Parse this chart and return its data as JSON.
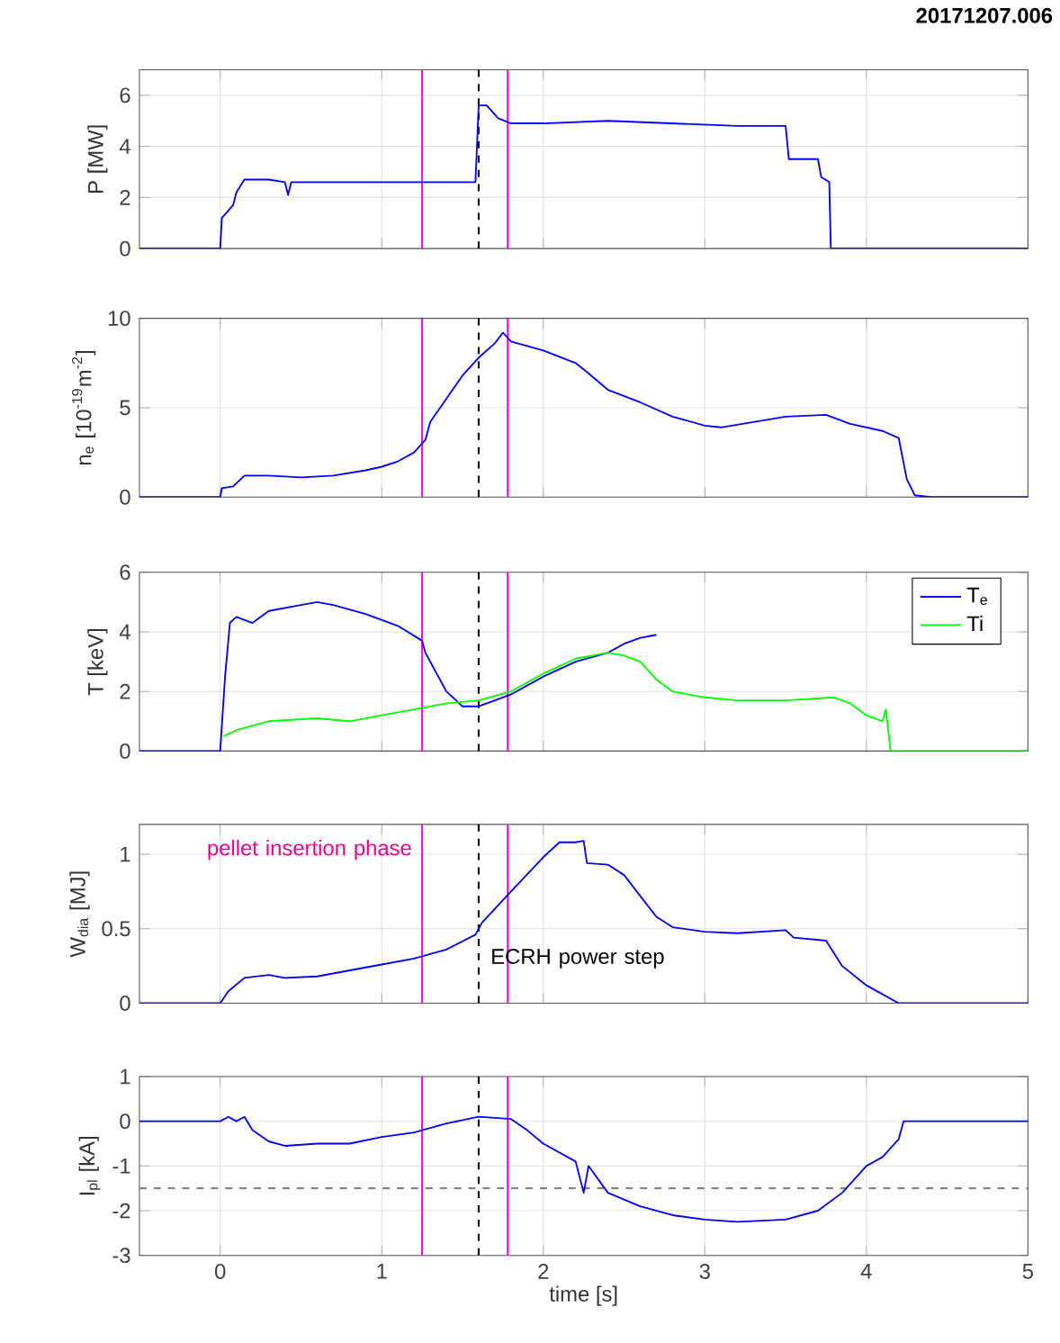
{
  "chart_data": [
    {
      "type": "line",
      "title": "20171207.006",
      "ylabel": "P [MW]",
      "xlim": [
        -0.5,
        5
      ],
      "xticks": [
        0,
        1,
        2,
        3,
        4,
        5
      ],
      "ylim": [
        0,
        7
      ],
      "yticks": [
        0,
        2,
        4,
        6
      ],
      "grid": true,
      "tick_labels": "y",
      "series": [
        {
          "color": "#0000ff",
          "x": [
            -0.5,
            0,
            0.01,
            0.08,
            0.1,
            0.15,
            0.3,
            0.4,
            0.42,
            0.44,
            0.6,
            0.8,
            1.0,
            1.2,
            1.4,
            1.58,
            1.6,
            1.65,
            1.72,
            1.8,
            2.0,
            2.4,
            2.8,
            3.2,
            3.5,
            3.52,
            3.7,
            3.72,
            3.77,
            3.78,
            4.0,
            5
          ],
          "values": [
            0,
            0,
            1.2,
            1.7,
            2.2,
            2.7,
            2.7,
            2.6,
            2.1,
            2.6,
            2.6,
            2.6,
            2.6,
            2.6,
            2.6,
            2.6,
            5.6,
            5.6,
            5.1,
            4.9,
            4.9,
            5.0,
            4.9,
            4.8,
            4.8,
            3.5,
            3.5,
            2.8,
            2.6,
            0,
            0,
            0
          ]
        }
      ],
      "ref_lines": [
        {
          "axis": "x",
          "value": 1.25,
          "color": "#ff00ff"
        },
        {
          "axis": "x",
          "value": 1.78,
          "color": "#ff00ff"
        },
        {
          "axis": "x",
          "value": 1.6,
          "color": "#000000",
          "line_style": "dashed"
        }
      ]
    },
    {
      "type": "line",
      "ylabel": "n$_{e}$ [10$^{-19}$m$^{-2}$]",
      "xlim": [
        -0.5,
        5
      ],
      "xticks": [
        0,
        1,
        2,
        3,
        4,
        5
      ],
      "ylim": [
        0,
        10
      ],
      "yticks": [
        0,
        5,
        10
      ],
      "grid": true,
      "tick_labels": "y",
      "series": [
        {
          "color": "#0000ff",
          "x": [
            -0.5,
            0,
            0.01,
            0.08,
            0.15,
            0.3,
            0.5,
            0.7,
            0.9,
            1.0,
            1.1,
            1.2,
            1.23,
            1.27,
            1.3,
            1.4,
            1.5,
            1.6,
            1.7,
            1.75,
            1.8,
            2.0,
            2.2,
            2.27,
            2.4,
            2.6,
            2.8,
            3.0,
            3.1,
            3.3,
            3.5,
            3.75,
            3.9,
            4.1,
            4.2,
            4.25,
            4.3,
            4.4,
            5
          ],
          "values": [
            0,
            0,
            0.5,
            0.6,
            1.2,
            1.2,
            1.1,
            1.2,
            1.5,
            1.7,
            2.0,
            2.5,
            2.8,
            3.2,
            4.2,
            5.5,
            6.8,
            7.8,
            8.6,
            9.2,
            8.7,
            8.2,
            7.5,
            7.0,
            6.0,
            5.3,
            4.5,
            4.0,
            3.9,
            4.2,
            4.5,
            4.6,
            4.1,
            3.7,
            3.3,
            1.0,
            0.1,
            0,
            0
          ]
        }
      ],
      "ref_lines": [
        {
          "axis": "x",
          "value": 1.25,
          "color": "#ff00ff"
        },
        {
          "axis": "x",
          "value": 1.78,
          "color": "#ff00ff"
        },
        {
          "axis": "x",
          "value": 1.6,
          "color": "#000000",
          "line_style": "dashed"
        }
      ]
    },
    {
      "type": "line",
      "ylabel": "T [keV]",
      "xlim": [
        -0.5,
        5
      ],
      "xticks": [
        0,
        1,
        2,
        3,
        4,
        5
      ],
      "ylim": [
        0,
        6
      ],
      "yticks": [
        0,
        2,
        4,
        6
      ],
      "grid": true,
      "tick_labels": "y",
      "legend": "top right",
      "series": [
        {
          "name": "T$_{e}$",
          "color": "#0000ff",
          "x": [
            -0.5,
            0,
            0.03,
            0.06,
            0.1,
            0.2,
            0.3,
            0.5,
            0.6,
            0.7,
            0.9,
            1.1,
            1.25,
            1.27,
            1.32,
            1.4,
            1.5,
            1.6,
            1.7,
            1.8,
            2.0,
            2.2,
            2.4,
            2.5,
            2.6,
            2.7
          ],
          "values": [
            0,
            0,
            2.5,
            4.3,
            4.5,
            4.3,
            4.7,
            4.9,
            5.0,
            4.9,
            4.6,
            4.2,
            3.7,
            3.3,
            2.8,
            2.0,
            1.5,
            1.5,
            1.7,
            1.9,
            2.5,
            3.0,
            3.3,
            3.6,
            3.8,
            3.9
          ]
        },
        {
          "name": "Ti",
          "color": "#00ff00",
          "x": [
            0.02,
            0.1,
            0.3,
            0.6,
            0.8,
            1.0,
            1.2,
            1.4,
            1.6,
            1.8,
            2.0,
            2.2,
            2.4,
            2.5,
            2.6,
            2.7,
            2.8,
            3.0,
            3.2,
            3.5,
            3.8,
            3.9,
            4.0,
            4.1,
            4.12,
            4.15,
            5
          ],
          "values": [
            0.5,
            0.7,
            1.0,
            1.1,
            1.0,
            1.2,
            1.4,
            1.6,
            1.7,
            2.0,
            2.6,
            3.1,
            3.3,
            3.2,
            3.0,
            2.4,
            2.0,
            1.8,
            1.7,
            1.7,
            1.8,
            1.6,
            1.2,
            1.0,
            1.4,
            0,
            0
          ]
        }
      ],
      "ref_lines": [
        {
          "axis": "x",
          "value": 1.25,
          "color": "#ff00ff"
        },
        {
          "axis": "x",
          "value": 1.78,
          "color": "#ff00ff"
        },
        {
          "axis": "x",
          "value": 1.6,
          "color": "#000000",
          "line_style": "dashed"
        }
      ]
    },
    {
      "type": "line",
      "ylabel": "W$_{dia}$ [MJ]",
      "xlim": [
        -0.5,
        5
      ],
      "xticks": [
        0,
        1,
        2,
        3,
        4,
        5
      ],
      "ylim": [
        0,
        1.2
      ],
      "yticks": [
        0,
        0.5,
        1
      ],
      "grid": true,
      "tick_labels": "y",
      "series": [
        {
          "color": "#0000ff",
          "x": [
            -0.5,
            0,
            0.05,
            0.15,
            0.3,
            0.4,
            0.6,
            0.8,
            1.0,
            1.2,
            1.4,
            1.58,
            1.62,
            1.8,
            2.0,
            2.1,
            2.2,
            2.25,
            2.27,
            2.4,
            2.5,
            2.6,
            2.7,
            2.8,
            3.0,
            3.2,
            3.5,
            3.55,
            3.75,
            3.85,
            4.0,
            4.2,
            5
          ],
          "values": [
            0,
            0,
            0.08,
            0.17,
            0.19,
            0.17,
            0.18,
            0.22,
            0.26,
            0.3,
            0.36,
            0.46,
            0.54,
            0.75,
            0.98,
            1.08,
            1.08,
            1.09,
            0.94,
            0.93,
            0.86,
            0.72,
            0.58,
            0.51,
            0.48,
            0.47,
            0.49,
            0.44,
            0.42,
            0.25,
            0.12,
            0,
            0
          ]
        }
      ],
      "ref_lines": [
        {
          "axis": "x",
          "value": 1.25,
          "color": "#ff00ff"
        },
        {
          "axis": "x",
          "value": 1.78,
          "color": "#ff00ff"
        },
        {
          "axis": "x",
          "value": 1.6,
          "color": "#000000",
          "line_style": "dashed"
        }
      ],
      "annotations": [
        "pellet insertion phase",
        "ECRH power step"
      ]
    },
    {
      "type": "line",
      "ylabel": "I$_{pl}$ [kA]",
      "xlabel": "time [s]",
      "xlim": [
        -0.5,
        5
      ],
      "xticks": [
        0,
        1,
        2,
        3,
        4,
        5
      ],
      "ylim": [
        -3,
        1
      ],
      "yticks": [
        -3,
        -2,
        -1,
        0,
        1
      ],
      "grid": true,
      "series": [
        {
          "color": "#0000ff",
          "x": [
            -0.5,
            0,
            0.05,
            0.1,
            0.15,
            0.2,
            0.3,
            0.4,
            0.6,
            0.8,
            1.0,
            1.2,
            1.4,
            1.6,
            1.8,
            1.9,
            2.0,
            2.2,
            2.25,
            2.28,
            2.4,
            2.6,
            2.8,
            3.0,
            3.2,
            3.5,
            3.7,
            3.85,
            4.0,
            4.1,
            4.2,
            4.23,
            5
          ],
          "values": [
            0,
            0,
            0.1,
            0,
            0.1,
            -0.2,
            -0.45,
            -0.55,
            -0.5,
            -0.5,
            -0.35,
            -0.25,
            -0.05,
            0.1,
            0.05,
            -0.2,
            -0.5,
            -0.9,
            -1.6,
            -1.0,
            -1.6,
            -1.9,
            -2.1,
            -2.2,
            -2.25,
            -2.2,
            -2.0,
            -1.6,
            -1.0,
            -0.8,
            -0.4,
            0,
            0
          ]
        }
      ],
      "ref_lines": [
        {
          "axis": "x",
          "value": 1.25,
          "color": "#ff00ff"
        },
        {
          "axis": "x",
          "value": 1.78,
          "color": "#ff00ff"
        },
        {
          "axis": "x",
          "value": 1.6,
          "color": "#000000",
          "line_style": "dashed"
        },
        {
          "axis": "y",
          "value": -1.5,
          "color": "#808080",
          "line_style": "dashed"
        }
      ]
    }
  ]
}
